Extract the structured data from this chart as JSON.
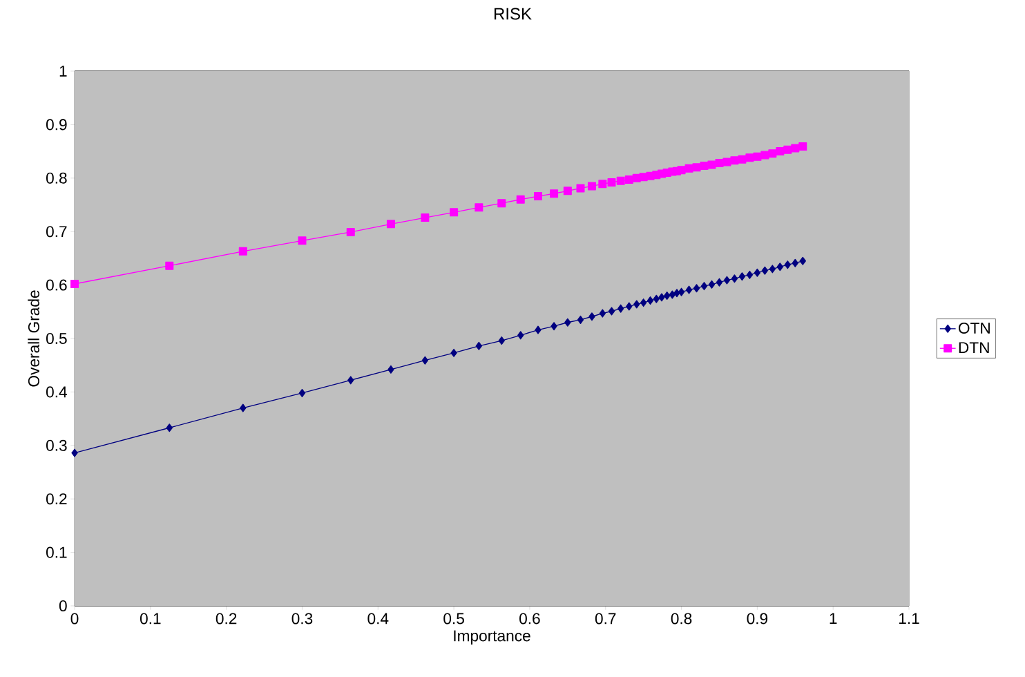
{
  "chart_data": {
    "type": "line",
    "title": "RISK",
    "xlabel": "Importance",
    "ylabel": "Overall Grade",
    "xlim": [
      0,
      1.1
    ],
    "xticks": [
      0,
      0.1,
      0.2,
      0.3,
      0.4,
      0.5,
      0.6,
      0.7,
      0.8,
      0.9,
      1,
      1.1
    ],
    "ylim": [
      0,
      1
    ],
    "yticks": [
      0,
      0.1,
      0.2,
      0.3,
      0.4,
      0.5,
      0.6,
      0.7,
      0.8,
      0.9,
      1
    ],
    "grid": "y",
    "legend": "right",
    "line_style": "solid",
    "x": [
      0,
      0.125,
      0.222,
      0.3,
      0.364,
      0.417,
      0.462,
      0.5,
      0.533,
      0.563,
      0.588,
      0.611,
      0.632,
      0.65,
      0.667,
      0.682,
      0.696,
      0.708,
      0.72,
      0.731,
      0.741,
      0.75,
      0.759,
      0.767,
      0.774,
      0.781,
      0.788,
      0.794,
      0.8,
      0.81,
      0.82,
      0.83,
      0.84,
      0.85,
      0.86,
      0.87,
      0.88,
      0.89,
      0.9,
      0.91,
      0.92,
      0.93,
      0.94,
      0.95,
      0.96
    ],
    "series": [
      {
        "name": "OTN",
        "color": "#000080",
        "marker": "diamond",
        "values": [
          0.286,
          0.333,
          0.37,
          0.398,
          0.422,
          0.442,
          0.459,
          0.473,
          0.486,
          0.496,
          0.506,
          0.516,
          0.523,
          0.53,
          0.535,
          0.541,
          0.547,
          0.551,
          0.556,
          0.56,
          0.564,
          0.567,
          0.571,
          0.574,
          0.577,
          0.58,
          0.582,
          0.585,
          0.587,
          0.591,
          0.594,
          0.598,
          0.601,
          0.605,
          0.609,
          0.612,
          0.616,
          0.619,
          0.623,
          0.627,
          0.63,
          0.634,
          0.638,
          0.641,
          0.645
        ]
      },
      {
        "name": "DTN",
        "color": "#ff00ff",
        "marker": "square",
        "values": [
          0.602,
          0.636,
          0.663,
          0.683,
          0.699,
          0.714,
          0.726,
          0.736,
          0.745,
          0.753,
          0.76,
          0.766,
          0.771,
          0.776,
          0.781,
          0.785,
          0.789,
          0.792,
          0.795,
          0.797,
          0.8,
          0.802,
          0.804,
          0.806,
          0.808,
          0.81,
          0.812,
          0.813,
          0.815,
          0.818,
          0.82,
          0.823,
          0.825,
          0.828,
          0.83,
          0.833,
          0.835,
          0.838,
          0.84,
          0.843,
          0.846,
          0.85,
          0.853,
          0.856,
          0.859
        ]
      }
    ]
  }
}
